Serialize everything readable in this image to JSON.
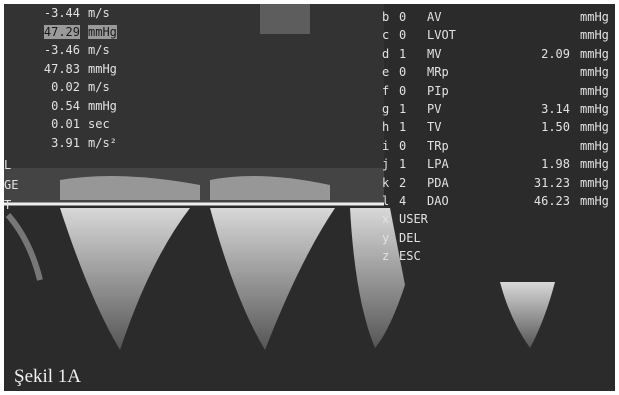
{
  "measurements": [
    {
      "value": "-3.44",
      "unit": "m/s"
    },
    {
      "value": "47.29",
      "unit": "mmHg"
    },
    {
      "value": "-3.46",
      "unit": "m/s"
    },
    {
      "value": "47.83",
      "unit": "mmHg"
    },
    {
      "value": "0.02",
      "unit": "m/s"
    },
    {
      "value": "0.54",
      "unit": "mmHg"
    },
    {
      "value": "0.01",
      "unit": "sec"
    },
    {
      "value": "3.91",
      "unit": "m/s²"
    }
  ],
  "edge_labels": [
    "L",
    "GE",
    "T"
  ],
  "menu": [
    {
      "key": "b",
      "count": "0",
      "label": "AV",
      "unit": "mmHg"
    },
    {
      "key": "c",
      "count": "0",
      "label": "LVOT",
      "unit": "mmHg"
    },
    {
      "key": "d",
      "count": "1",
      "label": "MV",
      "value": "2.09",
      "unit": "mmHg"
    },
    {
      "key": "e",
      "count": "0",
      "label": "MRp",
      "unit": "mmHg"
    },
    {
      "key": "f",
      "count": "0",
      "label": "PIp",
      "unit": "mmHg"
    },
    {
      "key": "g",
      "count": "1",
      "label": "PV",
      "value": "3.14",
      "unit": "mmHg"
    },
    {
      "key": "h",
      "count": "1",
      "label": "TV",
      "value": "1.50",
      "unit": "mmHg"
    },
    {
      "key": "i",
      "count": "0",
      "label": "TRp",
      "unit": "mmHg"
    },
    {
      "key": "j",
      "count": "1",
      "label": "LPA",
      "value": "1.98",
      "unit": "mmHg"
    },
    {
      "key": "k",
      "count": "2",
      "label": "PDA",
      "value": "31.23",
      "unit": "mmHg"
    },
    {
      "key": "l",
      "count": "4",
      "label": "DAO",
      "value": "46.23",
      "unit": "mmHg"
    },
    {
      "key": "x",
      "label": "USER"
    },
    {
      "key": "y",
      "label": "DEL"
    },
    {
      "key": "z",
      "label": "ESC"
    }
  ],
  "caption": "Şekil 1A"
}
